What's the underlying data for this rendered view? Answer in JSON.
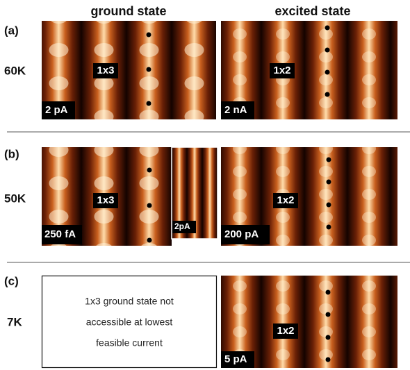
{
  "column_headers": [
    "ground state",
    "excited state"
  ],
  "rows": [
    {
      "label": "(a)",
      "temperature": "60K",
      "ground": {
        "phase": "1x3",
        "current": "2 pA"
      },
      "excited": {
        "phase": "1x2",
        "current": "2 nA"
      }
    },
    {
      "label": "(b)",
      "temperature": "50K",
      "ground": {
        "phase": "1x3",
        "current": "250 fA",
        "inset": "2pA"
      },
      "excited": {
        "phase": "1x2",
        "current": "200 pA"
      }
    },
    {
      "label": "(c)",
      "temperature": "7K",
      "ground": {
        "note_lines": [
          "1x3 ground state not",
          "accessible at lowest",
          "feasible current"
        ]
      },
      "excited": {
        "phase": "1x2",
        "current": "5 pA"
      }
    }
  ]
}
